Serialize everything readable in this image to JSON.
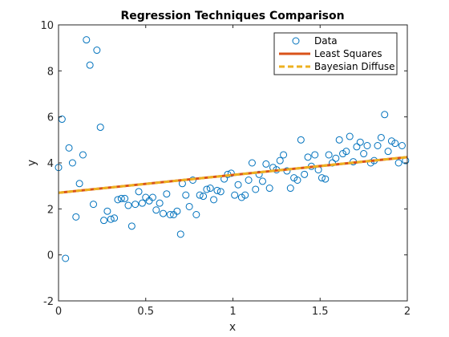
{
  "chart_data": {
    "type": "scatter",
    "title": "Regression Techniques Comparison",
    "xlabel": "x",
    "ylabel": "y",
    "xlim": [
      0,
      2
    ],
    "ylim": [
      -2,
      10
    ],
    "x_ticks": [
      0,
      0.5,
      1,
      1.5,
      2
    ],
    "x_tick_labels": [
      "0",
      "0.5",
      "1",
      "1.5",
      "2"
    ],
    "y_ticks": [
      -2,
      0,
      2,
      4,
      6,
      8,
      10
    ],
    "y_tick_labels": [
      "-2",
      "0",
      "2",
      "4",
      "6",
      "8",
      "10"
    ],
    "grid": false,
    "legend_position": "top-right",
    "series": [
      {
        "name": "Data",
        "kind": "scatter",
        "marker": "circle",
        "color": "#0072BD",
        "points": [
          [
            0.0,
            3.8
          ],
          [
            0.02,
            5.9
          ],
          [
            0.04,
            -0.15
          ],
          [
            0.06,
            4.65
          ],
          [
            0.08,
            4.0
          ],
          [
            0.1,
            1.65
          ],
          [
            0.12,
            3.1
          ],
          [
            0.14,
            4.35
          ],
          [
            0.16,
            9.35
          ],
          [
            0.18,
            8.25
          ],
          [
            0.2,
            2.2
          ],
          [
            0.22,
            8.9
          ],
          [
            0.24,
            5.55
          ],
          [
            0.26,
            1.5
          ],
          [
            0.28,
            1.9
          ],
          [
            0.3,
            1.55
          ],
          [
            0.32,
            1.6
          ],
          [
            0.34,
            2.4
          ],
          [
            0.36,
            2.45
          ],
          [
            0.38,
            2.45
          ],
          [
            0.4,
            2.15
          ],
          [
            0.42,
            1.25
          ],
          [
            0.44,
            2.2
          ],
          [
            0.46,
            2.75
          ],
          [
            0.48,
            2.25
          ],
          [
            0.5,
            2.5
          ],
          [
            0.52,
            2.35
          ],
          [
            0.54,
            2.5
          ],
          [
            0.56,
            1.95
          ],
          [
            0.58,
            2.25
          ],
          [
            0.6,
            1.8
          ],
          [
            0.62,
            2.65
          ],
          [
            0.64,
            1.75
          ],
          [
            0.66,
            1.75
          ],
          [
            0.68,
            1.9
          ],
          [
            0.7,
            0.9
          ],
          [
            0.71,
            3.1
          ],
          [
            0.73,
            2.6
          ],
          [
            0.75,
            2.1
          ],
          [
            0.77,
            3.25
          ],
          [
            0.79,
            1.75
          ],
          [
            0.81,
            2.6
          ],
          [
            0.83,
            2.55
          ],
          [
            0.85,
            2.85
          ],
          [
            0.87,
            2.9
          ],
          [
            0.89,
            2.4
          ],
          [
            0.91,
            2.8
          ],
          [
            0.93,
            2.75
          ],
          [
            0.95,
            3.3
          ],
          [
            0.97,
            3.5
          ],
          [
            0.99,
            3.55
          ],
          [
            1.01,
            2.6
          ],
          [
            1.03,
            3.05
          ],
          [
            1.05,
            2.5
          ],
          [
            1.07,
            2.6
          ],
          [
            1.09,
            3.25
          ],
          [
            1.11,
            4.0
          ],
          [
            1.13,
            2.85
          ],
          [
            1.15,
            3.5
          ],
          [
            1.17,
            3.2
          ],
          [
            1.19,
            3.95
          ],
          [
            1.21,
            2.9
          ],
          [
            1.23,
            3.8
          ],
          [
            1.25,
            3.7
          ],
          [
            1.27,
            4.1
          ],
          [
            1.29,
            4.35
          ],
          [
            1.31,
            3.65
          ],
          [
            1.33,
            2.9
          ],
          [
            1.35,
            3.35
          ],
          [
            1.37,
            3.25
          ],
          [
            1.39,
            5.0
          ],
          [
            1.41,
            3.5
          ],
          [
            1.43,
            4.25
          ],
          [
            1.45,
            3.85
          ],
          [
            1.47,
            4.35
          ],
          [
            1.49,
            3.7
          ],
          [
            1.51,
            3.35
          ],
          [
            1.53,
            3.3
          ],
          [
            1.55,
            4.35
          ],
          [
            1.57,
            4.0
          ],
          [
            1.59,
            4.2
          ],
          [
            1.61,
            5.0
          ],
          [
            1.63,
            4.4
          ],
          [
            1.65,
            4.5
          ],
          [
            1.67,
            5.15
          ],
          [
            1.69,
            4.05
          ],
          [
            1.71,
            4.7
          ],
          [
            1.73,
            4.9
          ],
          [
            1.75,
            4.4
          ],
          [
            1.77,
            4.75
          ],
          [
            1.79,
            4.0
          ],
          [
            1.81,
            4.1
          ],
          [
            1.83,
            4.75
          ],
          [
            1.85,
            5.1
          ],
          [
            1.87,
            6.1
          ],
          [
            1.89,
            4.5
          ],
          [
            1.91,
            4.95
          ],
          [
            1.93,
            4.85
          ],
          [
            1.95,
            4.0
          ],
          [
            1.97,
            4.75
          ],
          [
            1.99,
            4.1
          ]
        ]
      },
      {
        "name": "Least Squares",
        "kind": "line",
        "color": "#D95319",
        "style": "solid",
        "x": [
          0,
          2
        ],
        "y": [
          2.7,
          4.25
        ]
      },
      {
        "name": "Bayesian Diffuse",
        "kind": "line",
        "color": "#EDB120",
        "style": "dashed",
        "x": [
          0,
          2
        ],
        "y": [
          2.7,
          4.25
        ]
      }
    ]
  }
}
